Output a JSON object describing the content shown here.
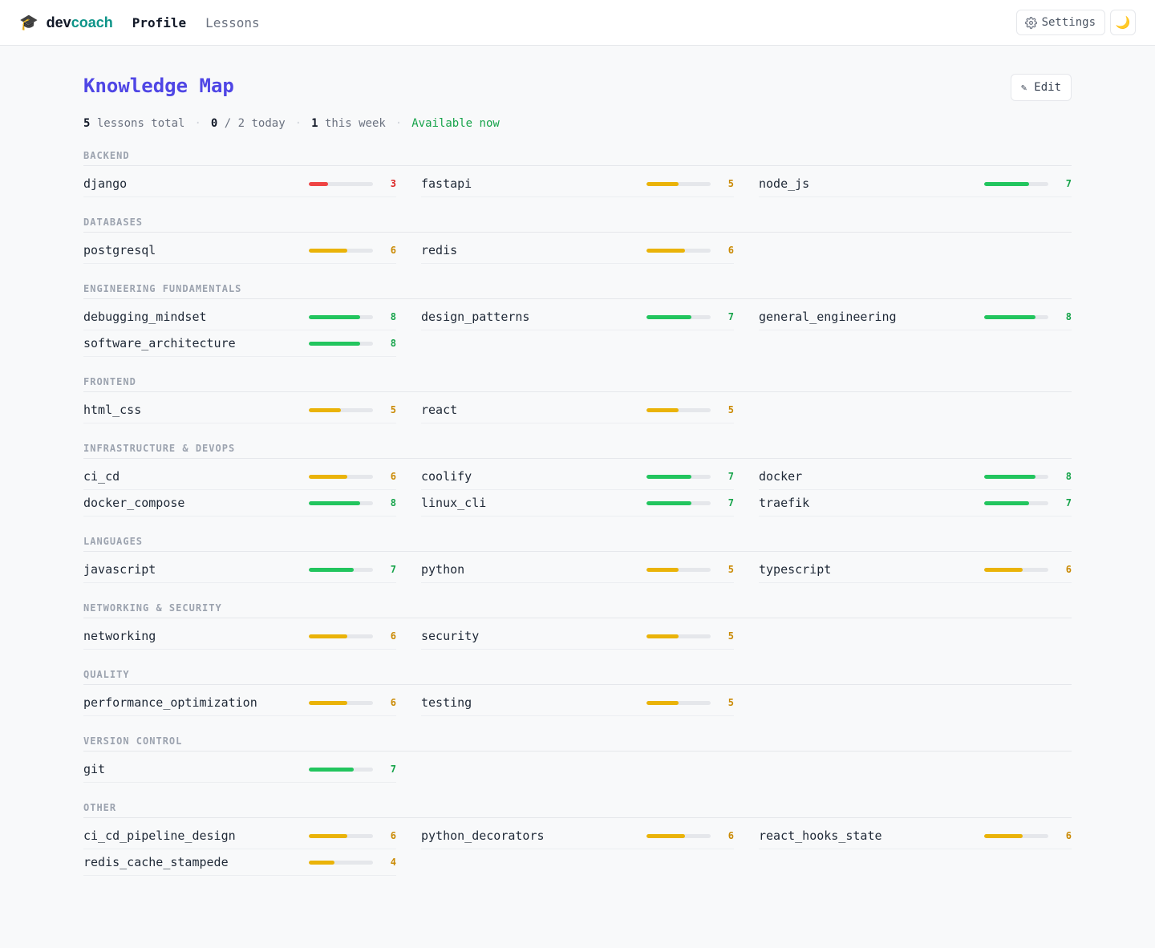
{
  "app": {
    "brand_dev": "dev",
    "brand_coach": "coach",
    "nav": [
      {
        "label": "Profile",
        "active": true
      },
      {
        "label": "Lessons",
        "active": false
      }
    ],
    "settings_label": "Settings",
    "theme_icon": "moon-icon"
  },
  "page": {
    "title": "Knowledge Map",
    "edit_label": "Edit",
    "stats": {
      "lessons_total": "5",
      "lessons_total_label": "lessons total",
      "today_done": "0",
      "today_label": "/ 2 today",
      "week_count": "1",
      "week_label": "this week",
      "availability": "Available now"
    }
  },
  "colors": {
    "low": "#ef4444",
    "low_text": "#dc2626",
    "mid": "#eab308",
    "mid_text": "#ca8a04",
    "high": "#22c55e",
    "high_text": "#16a34a",
    "accent": "#4f46e5",
    "brand": "#0d9488"
  },
  "score_max": 10,
  "sections": [
    {
      "name": "BACKEND",
      "topics": [
        {
          "name": "django",
          "score": 3
        },
        {
          "name": "fastapi",
          "score": 5
        },
        {
          "name": "node_js",
          "score": 7
        }
      ]
    },
    {
      "name": "DATABASES",
      "topics": [
        {
          "name": "postgresql",
          "score": 6
        },
        {
          "name": "redis",
          "score": 6
        }
      ]
    },
    {
      "name": "ENGINEERING FUNDAMENTALS",
      "topics": [
        {
          "name": "debugging_mindset",
          "score": 8
        },
        {
          "name": "design_patterns",
          "score": 7
        },
        {
          "name": "general_engineering",
          "score": 8
        },
        {
          "name": "software_architecture",
          "score": 8
        }
      ]
    },
    {
      "name": "FRONTEND",
      "topics": [
        {
          "name": "html_css",
          "score": 5
        },
        {
          "name": "react",
          "score": 5
        }
      ]
    },
    {
      "name": "INFRASTRUCTURE & DEVOPS",
      "topics": [
        {
          "name": "ci_cd",
          "score": 6
        },
        {
          "name": "coolify",
          "score": 7
        },
        {
          "name": "docker",
          "score": 8
        },
        {
          "name": "docker_compose",
          "score": 8
        },
        {
          "name": "linux_cli",
          "score": 7
        },
        {
          "name": "traefik",
          "score": 7
        }
      ]
    },
    {
      "name": "LANGUAGES",
      "topics": [
        {
          "name": "javascript",
          "score": 7
        },
        {
          "name": "python",
          "score": 5
        },
        {
          "name": "typescript",
          "score": 6
        }
      ]
    },
    {
      "name": "NETWORKING & SECURITY",
      "topics": [
        {
          "name": "networking",
          "score": 6
        },
        {
          "name": "security",
          "score": 5
        }
      ]
    },
    {
      "name": "QUALITY",
      "topics": [
        {
          "name": "performance_optimization",
          "score": 6
        },
        {
          "name": "testing",
          "score": 5
        }
      ]
    },
    {
      "name": "VERSION CONTROL",
      "topics": [
        {
          "name": "git",
          "score": 7
        }
      ]
    },
    {
      "name": "OTHER",
      "topics": [
        {
          "name": "ci_cd_pipeline_design",
          "score": 6
        },
        {
          "name": "python_decorators",
          "score": 6
        },
        {
          "name": "react_hooks_state",
          "score": 6
        },
        {
          "name": "redis_cache_stampede",
          "score": 4
        }
      ]
    }
  ]
}
